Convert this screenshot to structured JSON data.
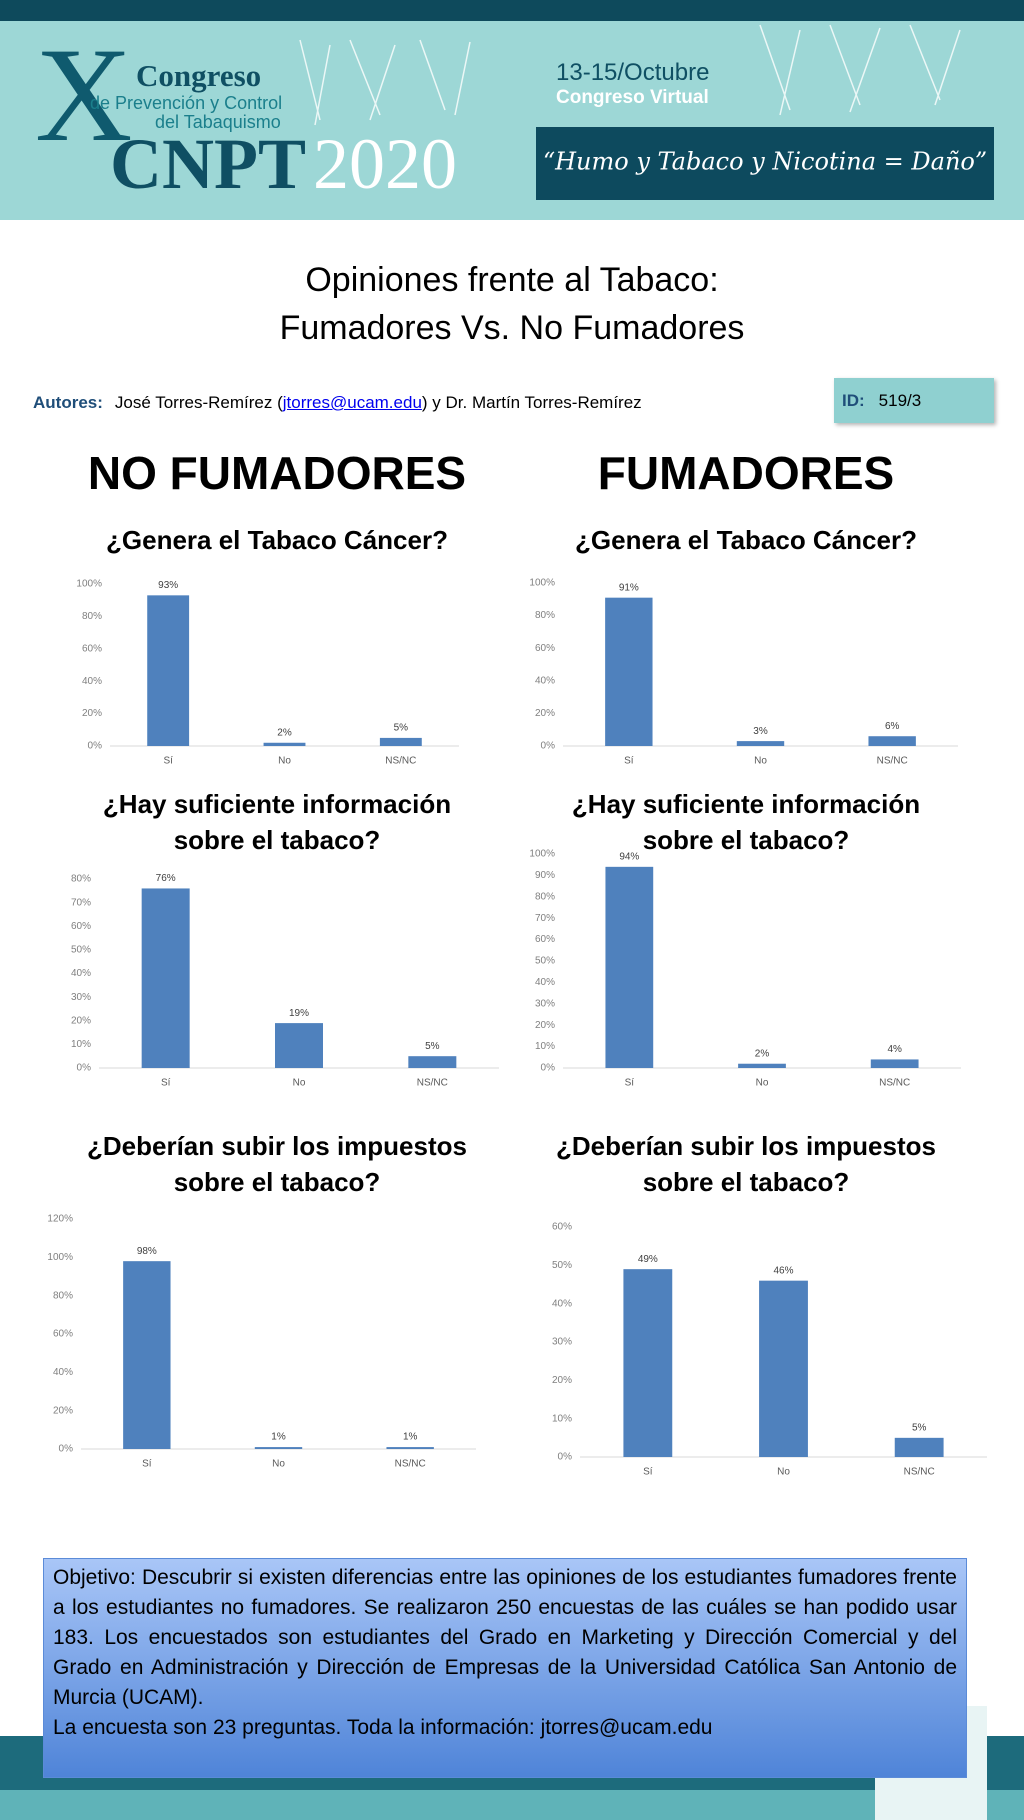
{
  "header": {
    "mark": "X",
    "congreso": "Congreso",
    "line1": "de Prevención y Control",
    "line2": "del Tabaquismo",
    "acronym": "CNPT",
    "year": "2020",
    "dates": "13-15/Octubre",
    "format": "Congreso Virtual",
    "slogan": "“Humo y Tabaco y Nicotina = Daño”"
  },
  "title": [
    "Opiniones frente al Tabaco:",
    "Fumadores Vs. No Fumadores"
  ],
  "authors": {
    "label": "Autores:",
    "before": "José Torres-Remírez (",
    "email": "jtorres@ucam.edu",
    "after": ") y Dr. Martín Torres-Remírez"
  },
  "id": {
    "label": "ID:",
    "value": "519/3"
  },
  "sections": [
    "NO FUMADORES",
    "FUMADORES"
  ],
  "chart_data": [
    {
      "type": "bar",
      "title": [
        "¿Genera el Tabaco Cáncer?"
      ],
      "categories": [
        "Sí",
        "No",
        "NS/NC"
      ],
      "values": [
        93,
        2,
        5
      ],
      "value_labels": [
        "93%",
        "2%",
        "5%"
      ],
      "color": "#4f81bd",
      "ylim": [
        0,
        100
      ],
      "yticks": [
        {
          "value": 0,
          "label": "0%"
        },
        {
          "value": 20,
          "label": "20%"
        },
        {
          "value": 40,
          "label": "40%"
        },
        {
          "value": 60,
          "label": "60%"
        },
        {
          "value": 80,
          "label": "80%"
        },
        {
          "value": 100,
          "label": "100%"
        }
      ],
      "grid": false
    },
    {
      "type": "bar",
      "title": [
        "¿Genera el Tabaco Cáncer?"
      ],
      "categories": [
        "Sí",
        "No",
        "NS/NC"
      ],
      "values": [
        91,
        3,
        6
      ],
      "value_labels": [
        "91%",
        "3%",
        "6%"
      ],
      "color": "#4f81bd",
      "ylim": [
        0,
        100
      ],
      "yticks": [
        {
          "value": 0,
          "label": "0%"
        },
        {
          "value": 20,
          "label": "20%"
        },
        {
          "value": 40,
          "label": "40%"
        },
        {
          "value": 60,
          "label": "60%"
        },
        {
          "value": 80,
          "label": "80%"
        },
        {
          "value": 100,
          "label": "100%"
        }
      ],
      "grid": false
    },
    {
      "type": "bar",
      "title": [
        "¿Hay suficiente información",
        "sobre el tabaco?"
      ],
      "categories": [
        "Sí",
        "No",
        "NS/NC"
      ],
      "values": [
        76,
        19,
        5
      ],
      "value_labels": [
        "76%",
        "19%",
        "5%"
      ],
      "color": "#4f81bd",
      "ylim": [
        0,
        80
      ],
      "yticks": [
        {
          "value": 0,
          "label": "0%"
        },
        {
          "value": 10,
          "label": "10%"
        },
        {
          "value": 20,
          "label": "20%"
        },
        {
          "value": 30,
          "label": "30%"
        },
        {
          "value": 40,
          "label": "40%"
        },
        {
          "value": 50,
          "label": "50%"
        },
        {
          "value": 60,
          "label": "60%"
        },
        {
          "value": 70,
          "label": "70%"
        },
        {
          "value": 80,
          "label": "80%"
        }
      ],
      "grid": false
    },
    {
      "type": "bar",
      "title": [
        "¿Hay suficiente información",
        "sobre el tabaco?"
      ],
      "categories": [
        "Sí",
        "No",
        "NS/NC"
      ],
      "values": [
        94,
        2,
        4
      ],
      "value_labels": [
        "94%",
        "2%",
        "4%"
      ],
      "color": "#4f81bd",
      "ylim": [
        0,
        100
      ],
      "yticks": [
        {
          "value": 0,
          "label": "0%"
        },
        {
          "value": 10,
          "label": "10%"
        },
        {
          "value": 20,
          "label": "20%"
        },
        {
          "value": 30,
          "label": "30%"
        },
        {
          "value": 40,
          "label": "40%"
        },
        {
          "value": 50,
          "label": "50%"
        },
        {
          "value": 60,
          "label": "60%"
        },
        {
          "value": 70,
          "label": "70%"
        },
        {
          "value": 80,
          "label": "80%"
        },
        {
          "value": 90,
          "label": "90%"
        },
        {
          "value": 100,
          "label": "100%"
        }
      ],
      "grid": false
    },
    {
      "type": "bar",
      "title": [
        "¿Deberían subir los impuestos",
        "sobre el tabaco?"
      ],
      "categories": [
        "Sí",
        "No",
        "NS/NC"
      ],
      "values": [
        98,
        1,
        1
      ],
      "value_labels": [
        "98%",
        "1%",
        "1%"
      ],
      "color": "#4f81bd",
      "ylim": [
        0,
        120
      ],
      "yticks": [
        {
          "value": 0,
          "label": "0%"
        },
        {
          "value": 20,
          "label": "20%"
        },
        {
          "value": 40,
          "label": "40%"
        },
        {
          "value": 60,
          "label": "60%"
        },
        {
          "value": 80,
          "label": "80%"
        },
        {
          "value": 100,
          "label": "100%"
        },
        {
          "value": 120,
          "label": "120%"
        }
      ],
      "grid": false
    },
    {
      "type": "bar",
      "title": [
        "¿Deberían subir los impuestos",
        "sobre el tabaco?"
      ],
      "categories": [
        "Sí",
        "No",
        "NS/NC"
      ],
      "values": [
        49,
        46,
        5
      ],
      "value_labels": [
        "49%",
        "46%",
        "5%"
      ],
      "color": "#4f81bd",
      "ylim": [
        0,
        60
      ],
      "yticks": [
        {
          "value": 0,
          "label": "0%"
        },
        {
          "value": 10,
          "label": "10%"
        },
        {
          "value": 20,
          "label": "20%"
        },
        {
          "value": 30,
          "label": "30%"
        },
        {
          "value": 40,
          "label": "40%"
        },
        {
          "value": 50,
          "label": "50%"
        },
        {
          "value": 60,
          "label": "60%"
        }
      ],
      "grid": false
    }
  ],
  "objective": [
    "Objetivo: Descubrir si existen diferencias entre las opiniones de los estudiantes fumadores frente a los estudiantes no fumadores. Se realizaron 250 encuestas de las cuáles se han podido usar 183. Los encuestados son estudiantes del Grado en Marketing y Dirección Comercial y del Grado en Administración y Dirección de Empresas de la Universidad Católica San Antonio de Murcia (UCAM).",
    "La encuesta son 23 preguntas. Toda la información: jtorres@ucam.edu"
  ]
}
